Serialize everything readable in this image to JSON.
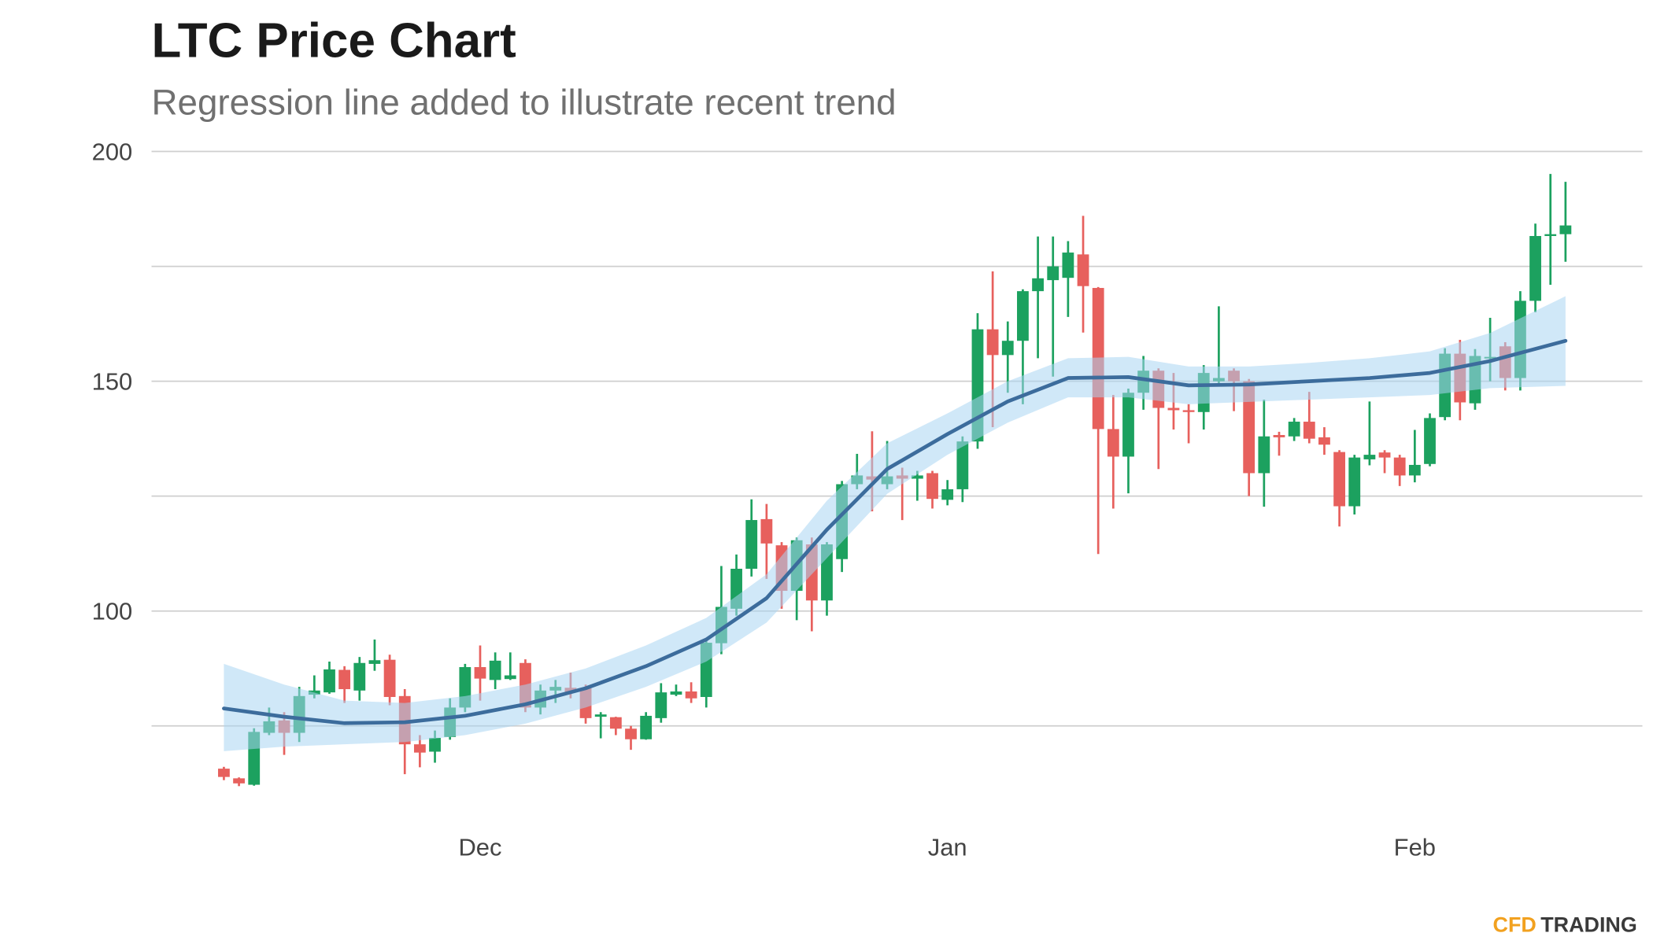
{
  "chart_data": {
    "type": "candlestick",
    "title": "LTC Price Chart",
    "subtitle": "Regression line added to illustrate recent trend",
    "x": [
      0,
      1,
      2,
      3,
      4,
      5,
      6,
      7,
      8,
      9,
      10,
      11,
      12,
      13,
      14,
      15,
      16,
      17,
      18,
      19,
      20,
      21,
      22,
      23,
      24,
      25,
      26,
      27,
      28,
      29,
      30,
      31,
      32,
      33,
      34,
      35,
      36,
      37,
      38,
      39,
      40,
      41,
      42,
      43,
      44,
      45,
      46,
      47,
      48,
      49,
      50,
      51,
      52,
      53,
      54,
      55,
      56,
      57,
      58,
      59,
      60,
      61,
      62,
      63,
      64,
      65,
      66,
      67,
      68,
      69,
      70,
      71,
      72,
      73,
      74,
      75,
      76,
      77,
      78,
      79,
      80,
      81,
      82,
      83,
      84,
      85,
      86,
      87,
      88,
      89
    ],
    "open": [
      65.7,
      63.6,
      62.2,
      73.5,
      76.2,
      73.5,
      81.8,
      82.3,
      87.2,
      82.7,
      88.5,
      89.4,
      81.5,
      71,
      69.4,
      72.6,
      79,
      87.8,
      85,
      85.2,
      88.7,
      79,
      82.7,
      83.3,
      83.2,
      77,
      76.9,
      74.4,
      72.1,
      76.7,
      81.8,
      82.5,
      81.3,
      93,
      100.5,
      109.2,
      120,
      114.3,
      104.4,
      114.5,
      102.3,
      111.3,
      127.6,
      129.3,
      127.6,
      129.5,
      128.8,
      130,
      124.2,
      126.5,
      136.9,
      161.3,
      155.7,
      158.8,
      169.6,
      172,
      172.5,
      177.6,
      170.3,
      139.6,
      133.6,
      147.5,
      152.3,
      144.2,
      143.7,
      143.3,
      150,
      152.3,
      150,
      130,
      138.3,
      138,
      141.2,
      137.8,
      134.6,
      122.8,
      133,
      134.5,
      133.4,
      129.5,
      132,
      142.2,
      156,
      145.2,
      155,
      157.6,
      150.7,
      167.5,
      181.6,
      182
    ],
    "high": [
      66.1,
      63.8,
      74.5,
      79,
      78,
      83.5,
      86,
      89,
      88,
      90,
      93.8,
      90.5,
      83,
      73,
      74,
      81,
      88.5,
      92.5,
      91,
      91,
      89.5,
      84,
      85,
      86.6,
      84,
      78,
      77,
      75,
      78,
      84.3,
      84,
      84.5,
      93.5,
      109.8,
      112.3,
      124.3,
      123.3,
      115,
      116,
      116,
      115,
      128.3,
      134.2,
      139.1,
      137,
      131.2,
      130.5,
      130.5,
      128.5,
      138,
      164.8,
      173.9,
      163,
      170,
      181.5,
      181.5,
      180.5,
      186,
      170.5,
      147,
      148.4,
      155.5,
      152.8,
      151.8,
      145,
      153.5,
      166.3,
      152.8,
      150.5,
      146,
      139,
      142,
      147.7,
      140,
      135,
      134,
      145.6,
      135,
      134,
      139.4,
      143,
      157.2,
      159,
      157,
      163.8,
      158.5,
      169.6,
      184.3,
      195.1,
      193.4
    ],
    "low": [
      63.2,
      61.9,
      62,
      73,
      68.7,
      71.5,
      81,
      82,
      80,
      80.5,
      87,
      79.5,
      64.5,
      66,
      67,
      72,
      78,
      80.5,
      83,
      85,
      78,
      77.5,
      80,
      81,
      75.5,
      72.3,
      73,
      69.8,
      72,
      75.7,
      81.5,
      80,
      79,
      90.6,
      99,
      107.5,
      107,
      100.5,
      98,
      95.6,
      99,
      108.5,
      126.5,
      121.7,
      126.5,
      119.8,
      124,
      122.3,
      123,
      123.7,
      135.3,
      140,
      147.5,
      145,
      155,
      151,
      164,
      160.6,
      112.4,
      122.3,
      125.6,
      143.8,
      130.9,
      139.5,
      136.5,
      139.5,
      149,
      143.5,
      125,
      122.7,
      133.8,
      137,
      136.5,
      134,
      118.4,
      121,
      131.7,
      130,
      127.2,
      128,
      131.5,
      141.5,
      141.5,
      143.8,
      150,
      148,
      148,
      165,
      171,
      176
    ],
    "close": [
      63.9,
      62.5,
      73.7,
      76,
      73.5,
      81.5,
      82.7,
      87.3,
      83,
      88.7,
      89.3,
      81.3,
      71,
      69.2,
      72.4,
      79,
      87.8,
      85.3,
      89.2,
      86,
      79,
      82.7,
      83.5,
      82.3,
      76.7,
      77.5,
      74.4,
      72.1,
      77.2,
      82.3,
      82.5,
      81,
      93.1,
      100.9,
      109.2,
      119.8,
      114.7,
      104.4,
      115.4,
      102.3,
      114.5,
      127.6,
      129.5,
      128.6,
      129.3,
      128.8,
      129.5,
      124.4,
      126.5,
      136.9,
      161.3,
      155.7,
      158.8,
      169.6,
      172.4,
      175,
      178,
      170.7,
      139.6,
      133.6,
      147.5,
      152.3,
      144.2,
      143.7,
      143.3,
      151.8,
      150.7,
      150,
      130,
      138,
      137.8,
      141.2,
      137.5,
      136.2,
      122.8,
      133.4,
      134,
      133.4,
      129.5,
      131.8,
      142,
      156,
      145.4,
      155.5,
      155.3,
      150.7,
      167.5,
      181.6,
      182,
      183.9
    ],
    "up_color": "#1ca15f",
    "down_color": "#e7605d",
    "xlim": [
      -4.8,
      94.1
    ],
    "xticks": [
      {
        "value": 17,
        "label": "Dec"
      },
      {
        "value": 48,
        "label": "Jan"
      },
      {
        "value": 79,
        "label": "Feb"
      }
    ],
    "ylim": [
      60,
      203
    ],
    "yticks": [
      100,
      150,
      200
    ],
    "minor_yticks": [
      75,
      125,
      175
    ],
    "grid": true,
    "trend": {
      "x": [
        0,
        4,
        8,
        12,
        16,
        20,
        24,
        28,
        32,
        36,
        40,
        44,
        48,
        52,
        56,
        60,
        64,
        68,
        72,
        76,
        80,
        84,
        89
      ],
      "values": [
        78.8,
        77,
        75.6,
        75.8,
        77.2,
        79.7,
        83.2,
        88,
        93.8,
        102.8,
        117.7,
        130.9,
        138.5,
        145.6,
        150.7,
        150.9,
        149.1,
        149.3,
        150,
        150.7,
        151.8,
        154.4,
        158.8
      ],
      "lower": [
        69.5,
        70.5,
        71,
        71.5,
        73,
        75.5,
        79,
        83.5,
        89,
        97.5,
        111.5,
        125.5,
        134,
        141,
        146.5,
        146.5,
        145,
        145.5,
        146,
        146.5,
        147,
        148.5,
        149
      ],
      "upper": [
        88.5,
        84,
        80.5,
        80,
        81.5,
        84,
        87.5,
        92.5,
        98.5,
        108,
        124,
        136.5,
        143,
        150,
        155,
        155.3,
        153.2,
        153.2,
        154,
        155,
        156.5,
        160.5,
        168.5
      ],
      "color": "#3c6c9c",
      "band_color": "#a9d6f2"
    }
  },
  "brand": {
    "part1": "CFD",
    "part2": "TRADING"
  }
}
